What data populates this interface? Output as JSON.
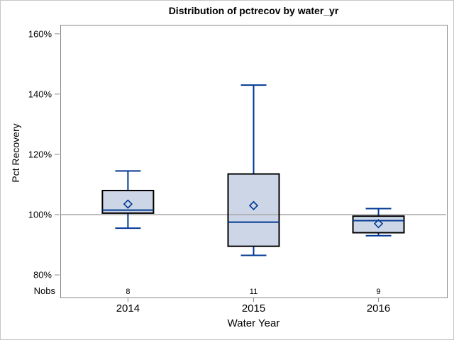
{
  "chart_data": {
    "type": "boxplot",
    "title": "Distribution of pctrecov by water_yr",
    "xlabel": "Water Year",
    "ylabel": "Pct Recovery",
    "nobs_label": "Nobs",
    "categories": [
      "2014",
      "2015",
      "2016"
    ],
    "yticks": [
      80,
      100,
      120,
      140,
      160
    ],
    "ytick_suffix": "%",
    "ylim": [
      72.5,
      163
    ],
    "reference_line": 100,
    "grid": false,
    "legend": "none",
    "boxes": [
      {
        "category": "2014",
        "nobs": "8",
        "whisker_low": 95.5,
        "q1": 100.5,
        "median": 101.5,
        "q3": 108,
        "whisker_high": 114.5,
        "mean": 103.5
      },
      {
        "category": "2015",
        "nobs": "11",
        "whisker_low": 86.5,
        "q1": 89.5,
        "median": 97.5,
        "q3": 113.5,
        "whisker_high": 143,
        "mean": 103
      },
      {
        "category": "2016",
        "nobs": "9",
        "whisker_low": 93,
        "q1": 94,
        "median": 98,
        "q3": 99.5,
        "whisker_high": 102,
        "mean": 97
      }
    ],
    "colors": {
      "box_fill": "#ccd6e6",
      "box_border": "#000000",
      "whisker": "#003893",
      "median": "#003893",
      "mean_marker": "#003893",
      "reference_line": "#a8a8a8",
      "frame": "#868686",
      "text": "#000000",
      "background": "#ffffff"
    }
  }
}
